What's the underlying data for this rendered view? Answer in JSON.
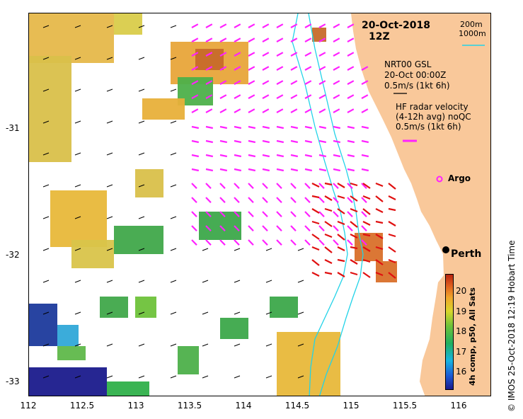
{
  "title": {
    "date": "20-Oct-2018",
    "time": "12Z"
  },
  "depth_legend": {
    "line1": "200m",
    "line2": "1000m"
  },
  "gsl_legend": {
    "line1": "NRT00 GSL",
    "line2": "20-Oct 00:00Z",
    "line3": "0.5m/s (1kt 6h)"
  },
  "hf_legend": {
    "line1": "HF radar velocity",
    "line2": "(4-12h avg) noQC",
    "line3": "0.5m/s (1kt 6h)"
  },
  "argo_label": "Argo",
  "city_label": "Perth",
  "colorbar": {
    "label": "4h comp, p50, All Sats",
    "ticks": [
      "20",
      "19",
      "18",
      "17",
      "16"
    ]
  },
  "side_label": "© IMOS 25-Oct-2018 12:19 Hobart Time",
  "x_ticks": [
    "112",
    "112.5",
    "113",
    "113.5",
    "114",
    "114.5",
    "115",
    "115.5",
    "116"
  ],
  "y_ticks": [
    "-31",
    "-32",
    "-33"
  ],
  "colors": {
    "land": "#f9c89a",
    "isobath": "#22d3e8",
    "hf_arrows": "#ff22ff",
    "gsl_arrows": "#000000",
    "red_arrows": "#e01010"
  }
}
